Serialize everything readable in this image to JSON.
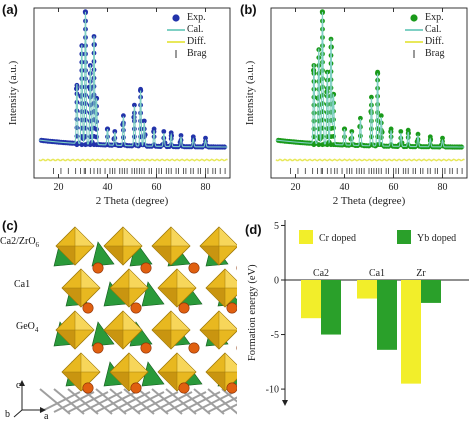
{
  "panels": {
    "a": "(a)",
    "b": "(b)",
    "c": "(c)",
    "d": "(d)"
  },
  "xrd_common": {
    "xlabel": "2 Theta (degree)",
    "ylabel": "Intensity (a.u.)",
    "xticks": [
      20,
      40,
      60,
      80
    ],
    "xlim": [
      10,
      90
    ],
    "legend": [
      "Exp.",
      "Cal.",
      "Diff.",
      "Brag"
    ],
    "cal_color": "#7fd0c4",
    "diff_color": "#e8e85a",
    "brag_color": "#333333"
  },
  "chart_data": [
    {
      "panel": "a",
      "type": "scatter",
      "xlim": [
        10,
        90
      ],
      "xlabel": "2 Theta (degree)",
      "ylabel": "Intensity (a.u.)",
      "exp_color": "#2233aa",
      "peaks": [
        {
          "x": 27.5,
          "y": 0.45
        },
        {
          "x": 29.5,
          "y": 0.75
        },
        {
          "x": 31.0,
          "y": 1.0
        },
        {
          "x": 33.0,
          "y": 0.6
        },
        {
          "x": 34.5,
          "y": 0.82
        },
        {
          "x": 35.5,
          "y": 0.35
        },
        {
          "x": 40.0,
          "y": 0.12
        },
        {
          "x": 43.0,
          "y": 0.1
        },
        {
          "x": 46.5,
          "y": 0.22
        },
        {
          "x": 51.0,
          "y": 0.3
        },
        {
          "x": 53.5,
          "y": 0.42
        },
        {
          "x": 55.0,
          "y": 0.18
        },
        {
          "x": 59.0,
          "y": 0.12
        },
        {
          "x": 63.0,
          "y": 0.1
        },
        {
          "x": 66.0,
          "y": 0.09
        },
        {
          "x": 70.0,
          "y": 0.07
        },
        {
          "x": 75.0,
          "y": 0.06
        },
        {
          "x": 80.0,
          "y": 0.05
        }
      ],
      "brag_x": [
        18,
        21,
        24,
        27,
        29,
        30.5,
        31,
        33,
        34.5,
        36,
        37,
        39,
        41,
        42,
        43,
        45,
        46,
        47,
        48,
        50,
        51,
        52,
        53,
        54,
        55,
        57,
        58,
        60,
        61,
        62,
        64,
        65,
        66,
        68,
        69,
        71,
        72,
        74,
        75,
        77,
        78,
        80,
        81,
        83,
        84,
        86,
        88
      ]
    },
    {
      "panel": "b",
      "type": "scatter",
      "xlim": [
        10,
        90
      ],
      "xlabel": "2 Theta (degree)",
      "ylabel": "Intensity (a.u.)",
      "exp_color": "#1a9a1a",
      "peaks": [
        {
          "x": 27.5,
          "y": 0.6
        },
        {
          "x": 29.5,
          "y": 0.72
        },
        {
          "x": 31.0,
          "y": 1.0
        },
        {
          "x": 33.0,
          "y": 0.55
        },
        {
          "x": 34.5,
          "y": 0.8
        },
        {
          "x": 35.5,
          "y": 0.38
        },
        {
          "x": 40.0,
          "y": 0.12
        },
        {
          "x": 43.0,
          "y": 0.1
        },
        {
          "x": 46.5,
          "y": 0.2
        },
        {
          "x": 51.0,
          "y": 0.36
        },
        {
          "x": 53.5,
          "y": 0.55
        },
        {
          "x": 55.0,
          "y": 0.22
        },
        {
          "x": 59.0,
          "y": 0.12
        },
        {
          "x": 63.0,
          "y": 0.1
        },
        {
          "x": 66.0,
          "y": 0.11
        },
        {
          "x": 70.0,
          "y": 0.08
        },
        {
          "x": 75.0,
          "y": 0.06
        },
        {
          "x": 80.0,
          "y": 0.05
        }
      ],
      "brag_x": [
        18,
        21,
        24,
        27,
        29,
        30.5,
        31,
        33,
        34.5,
        36,
        37,
        39,
        41,
        42,
        43,
        45,
        46,
        47,
        48,
        50,
        51,
        52,
        53,
        54,
        55,
        57,
        58,
        60,
        61,
        62,
        64,
        65,
        66,
        68,
        69,
        71,
        72,
        74,
        75,
        77,
        78,
        80,
        81,
        83,
        84,
        86,
        88
      ]
    },
    {
      "panel": "d",
      "type": "bar",
      "categories": [
        "Ca2",
        "Ca1",
        "Zr"
      ],
      "series": [
        {
          "name": "Cr doped",
          "color": "#f2ee2a",
          "values": [
            -3.5,
            -1.7,
            -9.5
          ]
        },
        {
          "name": "Yb doped",
          "color": "#2aa02a",
          "values": [
            -5.0,
            -6.4,
            -2.1
          ]
        }
      ],
      "ylabel": "Formation energy (eV)",
      "ylim": [
        -11,
        5.5
      ],
      "yticks": [
        5,
        0,
        -5,
        -10
      ]
    }
  ],
  "crystal": {
    "labels": {
      "ca2zr": "Ca2/ZrO",
      "ca2zr_sub": "6",
      "ca1": "Ca1",
      "geo": "GeO",
      "geo_sub": "4"
    },
    "axes": {
      "c": "c",
      "b": "b",
      "a": "a"
    },
    "colors": {
      "yellow": "#e8b820",
      "green": "#2a9a3a",
      "orange": "#e06010",
      "lattice": "#888888"
    }
  }
}
